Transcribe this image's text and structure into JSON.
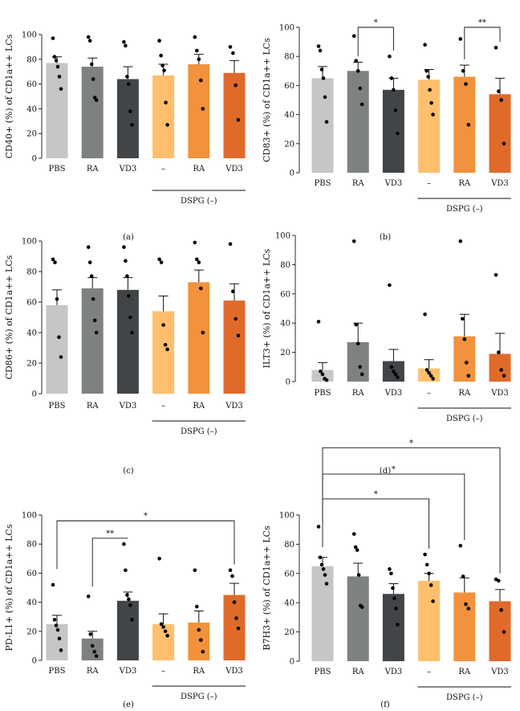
{
  "chart_data": [
    {
      "id": "a",
      "type": "bar",
      "panel_label": "(a)",
      "ylabel": "CD40+ (%) of CD1a++ LCs",
      "ylim": [
        0,
        100
      ],
      "yticks": [
        "0",
        "20",
        "40",
        "60",
        "80",
        "100"
      ],
      "categories": [
        "PBS",
        "RA",
        "VD3",
        "–",
        "RA",
        "VD3"
      ],
      "group_label": "DSPG (–)",
      "colors": [
        "#c6c6c6",
        "#7d8180",
        "#424548",
        "#ffbf6c",
        "#f2923c",
        "#e06a2a"
      ],
      "means": [
        77,
        74,
        64,
        67,
        76,
        69
      ],
      "errors": [
        5,
        7,
        10,
        9,
        8,
        10
      ],
      "points": [
        [
          97,
          82,
          79,
          74,
          66,
          56
        ],
        [
          98,
          95,
          76,
          64,
          49,
          47
        ],
        [
          94,
          91,
          66,
          60,
          38,
          27
        ],
        [
          95,
          83,
          75,
          71,
          45,
          27
        ],
        [
          98,
          87,
          80,
          63,
          40
        ],
        [
          90,
          85,
          59,
          31
        ]
      ],
      "significance": []
    },
    {
      "id": "b",
      "type": "bar",
      "panel_label": "(b)",
      "ylabel": "CD83+ (%) of CD1a++ LCs",
      "ylim": [
        0,
        100
      ],
      "yticks": [
        "0",
        "20",
        "40",
        "60",
        "80",
        "100"
      ],
      "categories": [
        "PBS",
        "RA",
        "VD3",
        "–",
        "RA",
        "VD3"
      ],
      "group_label": "DSPG (–)",
      "colors": [
        "#c6c6c6",
        "#7d8180",
        "#424548",
        "#ffbf6c",
        "#f2923c",
        "#e06a2a"
      ],
      "means": [
        65,
        70,
        57,
        64,
        66,
        54
      ],
      "errors": [
        8,
        6,
        8,
        7,
        8,
        11
      ],
      "points": [
        [
          87,
          84,
          71,
          65,
          52,
          35
        ],
        [
          94,
          77,
          70,
          58,
          47
        ],
        [
          80,
          65,
          57,
          43,
          27
        ],
        [
          88,
          70,
          66,
          57,
          48,
          40
        ],
        [
          92,
          70,
          61,
          33
        ],
        [
          86,
          56,
          50,
          20
        ]
      ],
      "significance": [
        {
          "from": 1,
          "to": 2,
          "label": "*",
          "level": 100
        },
        {
          "from": 4,
          "to": 5,
          "label": "**",
          "level": 100
        }
      ]
    },
    {
      "id": "c",
      "type": "bar",
      "panel_label": "(c)",
      "ylabel": "CD86+ (%) of CD1a++ LCs",
      "ylim": [
        0,
        100
      ],
      "yticks": [
        "0",
        "20",
        "40",
        "60",
        "80",
        "100"
      ],
      "categories": [
        "PBS",
        "RA",
        "VD3",
        "–",
        "RA",
        "VD3"
      ],
      "group_label": "DSPG (–)",
      "colors": [
        "#c6c6c6",
        "#7d8180",
        "#424548",
        "#ffbf6c",
        "#f2923c",
        "#e06a2a"
      ],
      "means": [
        58,
        69,
        68,
        54,
        73,
        61
      ],
      "errors": [
        10,
        7,
        8,
        10,
        8,
        11
      ],
      "points": [
        [
          88,
          86,
          62,
          37,
          24
        ],
        [
          96,
          86,
          77,
          62,
          48,
          40
        ],
        [
          96,
          87,
          77,
          64,
          50,
          40
        ],
        [
          88,
          86,
          45,
          32,
          29
        ],
        [
          99,
          88,
          86,
          69,
          40
        ],
        [
          98,
          67,
          49,
          38
        ]
      ],
      "significance": []
    },
    {
      "id": "d",
      "type": "bar",
      "panel_label": "(d)",
      "ylabel": "ILT3+ (%) of CD1a++ LCs",
      "ylim": [
        0,
        100
      ],
      "yticks": [
        "0",
        "20",
        "40",
        "60",
        "80",
        "100"
      ],
      "categories": [
        "PBS",
        "RA",
        "VD3",
        "–",
        "RA",
        "VD3"
      ],
      "group_label": "DSPG (–)",
      "colors": [
        "#c6c6c6",
        "#7d8180",
        "#424548",
        "#ffbf6c",
        "#f2923c",
        "#e06a2a"
      ],
      "means": [
        8,
        27,
        14,
        9,
        31,
        19
      ],
      "errors": [
        5,
        13,
        8,
        6,
        15,
        14
      ],
      "points": [
        [
          41,
          7,
          5,
          2,
          1
        ],
        [
          96,
          39,
          26,
          10,
          5
        ],
        [
          66,
          10,
          7,
          5,
          3
        ],
        [
          46,
          8,
          6,
          4,
          2
        ],
        [
          96,
          43,
          29,
          13,
          4
        ],
        [
          73,
          20,
          8,
          4
        ]
      ],
      "significance": []
    },
    {
      "id": "e",
      "type": "bar",
      "panel_label": "(e)",
      "ylabel": "PD-L1+ (%) of CD1a++ LCs",
      "ylim": [
        0,
        100
      ],
      "yticks": [
        "0",
        "20",
        "40",
        "60",
        "80",
        "100"
      ],
      "categories": [
        "PBS",
        "RA",
        "VD3",
        "–",
        "RA",
        "VD3"
      ],
      "group_label": "DSPG (–)",
      "colors": [
        "#c6c6c6",
        "#7d8180",
        "#424548",
        "#ffbf6c",
        "#f2923c",
        "#e06a2a"
      ],
      "means": [
        25,
        15,
        41,
        25,
        26,
        45
      ],
      "errors": [
        6,
        5,
        6,
        7,
        8,
        8
      ],
      "points": [
        [
          52,
          28,
          24,
          21,
          15,
          7
        ],
        [
          44,
          18,
          10,
          6,
          3
        ],
        [
          80,
          62,
          45,
          42,
          38,
          28
        ],
        [
          70,
          25,
          23,
          20,
          17
        ],
        [
          62,
          37,
          21,
          14,
          6
        ],
        [
          62,
          58,
          40,
          29,
          22
        ]
      ],
      "significance": [
        {
          "from": 1,
          "to": 2,
          "label": "**",
          "level": 84
        },
        {
          "from": 0,
          "to": 5,
          "label": "*",
          "level": 96
        }
      ]
    },
    {
      "id": "f",
      "type": "bar",
      "panel_label": "(f)",
      "ylabel": "B7H3+ (%) of CD1a++ LCs",
      "ylim": [
        0,
        100
      ],
      "yticks": [
        "0",
        "20",
        "40",
        "60",
        "80",
        "100"
      ],
      "categories": [
        "PBS",
        "RA",
        "VD3",
        "–",
        "RA",
        "VD3"
      ],
      "group_label": "DSPG (–)",
      "colors": [
        "#c6c6c6",
        "#7d8180",
        "#424548",
        "#ffbf6c",
        "#f2923c",
        "#e06a2a"
      ],
      "means": [
        65,
        58,
        46,
        55,
        47,
        41
      ],
      "errors": [
        6,
        9,
        7,
        5,
        10,
        8
      ],
      "points": [
        [
          92,
          71,
          66,
          63,
          59,
          53
        ],
        [
          87,
          78,
          76,
          59,
          38,
          37
        ],
        [
          63,
          60,
          50,
          43,
          36,
          25
        ],
        [
          73,
          66,
          60,
          52,
          41
        ],
        [
          79,
          58,
          39,
          36
        ],
        [
          56,
          55,
          35,
          20
        ]
      ],
      "significance": [
        {
          "from": 0,
          "to": 3,
          "label": "*",
          "level": 111
        },
        {
          "from": 0,
          "to": 4,
          "label": "*",
          "level": 128
        },
        {
          "from": 0,
          "to": 5,
          "label": "*",
          "level": 146
        }
      ]
    }
  ]
}
